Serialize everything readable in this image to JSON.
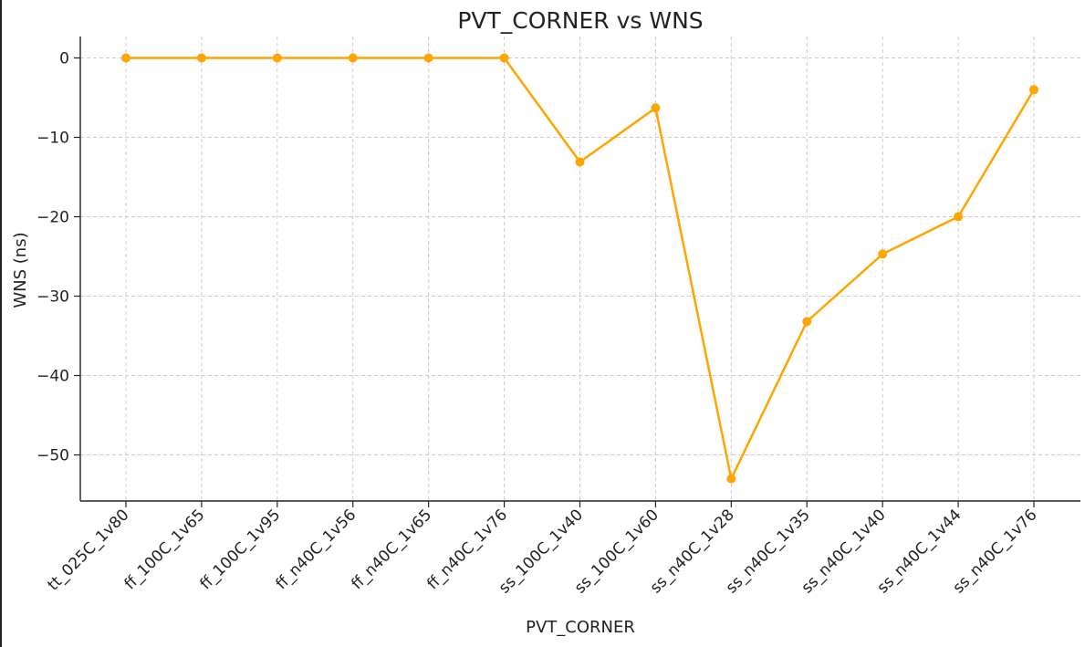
{
  "chart_data": {
    "type": "line",
    "title": "PVT_CORNER vs WNS",
    "xlabel": "PVT_CORNER",
    "ylabel": "WNS (ns)",
    "categories": [
      "tt_025C_1v80",
      "ff_100C_1v65",
      "ff_100C_1v95",
      "ff_n40C_1v56",
      "ff_n40C_1v65",
      "ff_n40C_1v76",
      "ss_100C_1v40",
      "ss_100C_1v60",
      "ss_n40C_1v28",
      "ss_n40C_1v35",
      "ss_n40C_1v40",
      "ss_n40C_1v44",
      "ss_n40C_1v76"
    ],
    "series": [
      {
        "values": [
          0,
          0,
          0,
          0,
          0,
          0,
          -13.1,
          -6.3,
          -53.0,
          -33.2,
          -24.7,
          -20.0,
          -4.0
        ]
      }
    ],
    "ylim": [
      -55.8,
      2.7
    ],
    "yticks": [
      0,
      -10,
      -20,
      -30,
      -40,
      -50
    ],
    "ytick_labels": [
      "0",
      "−10",
      "−20",
      "−30",
      "−40",
      "−50"
    ],
    "grid": true,
    "line_color": "#FFA500",
    "marker_color": "#FFA500"
  }
}
